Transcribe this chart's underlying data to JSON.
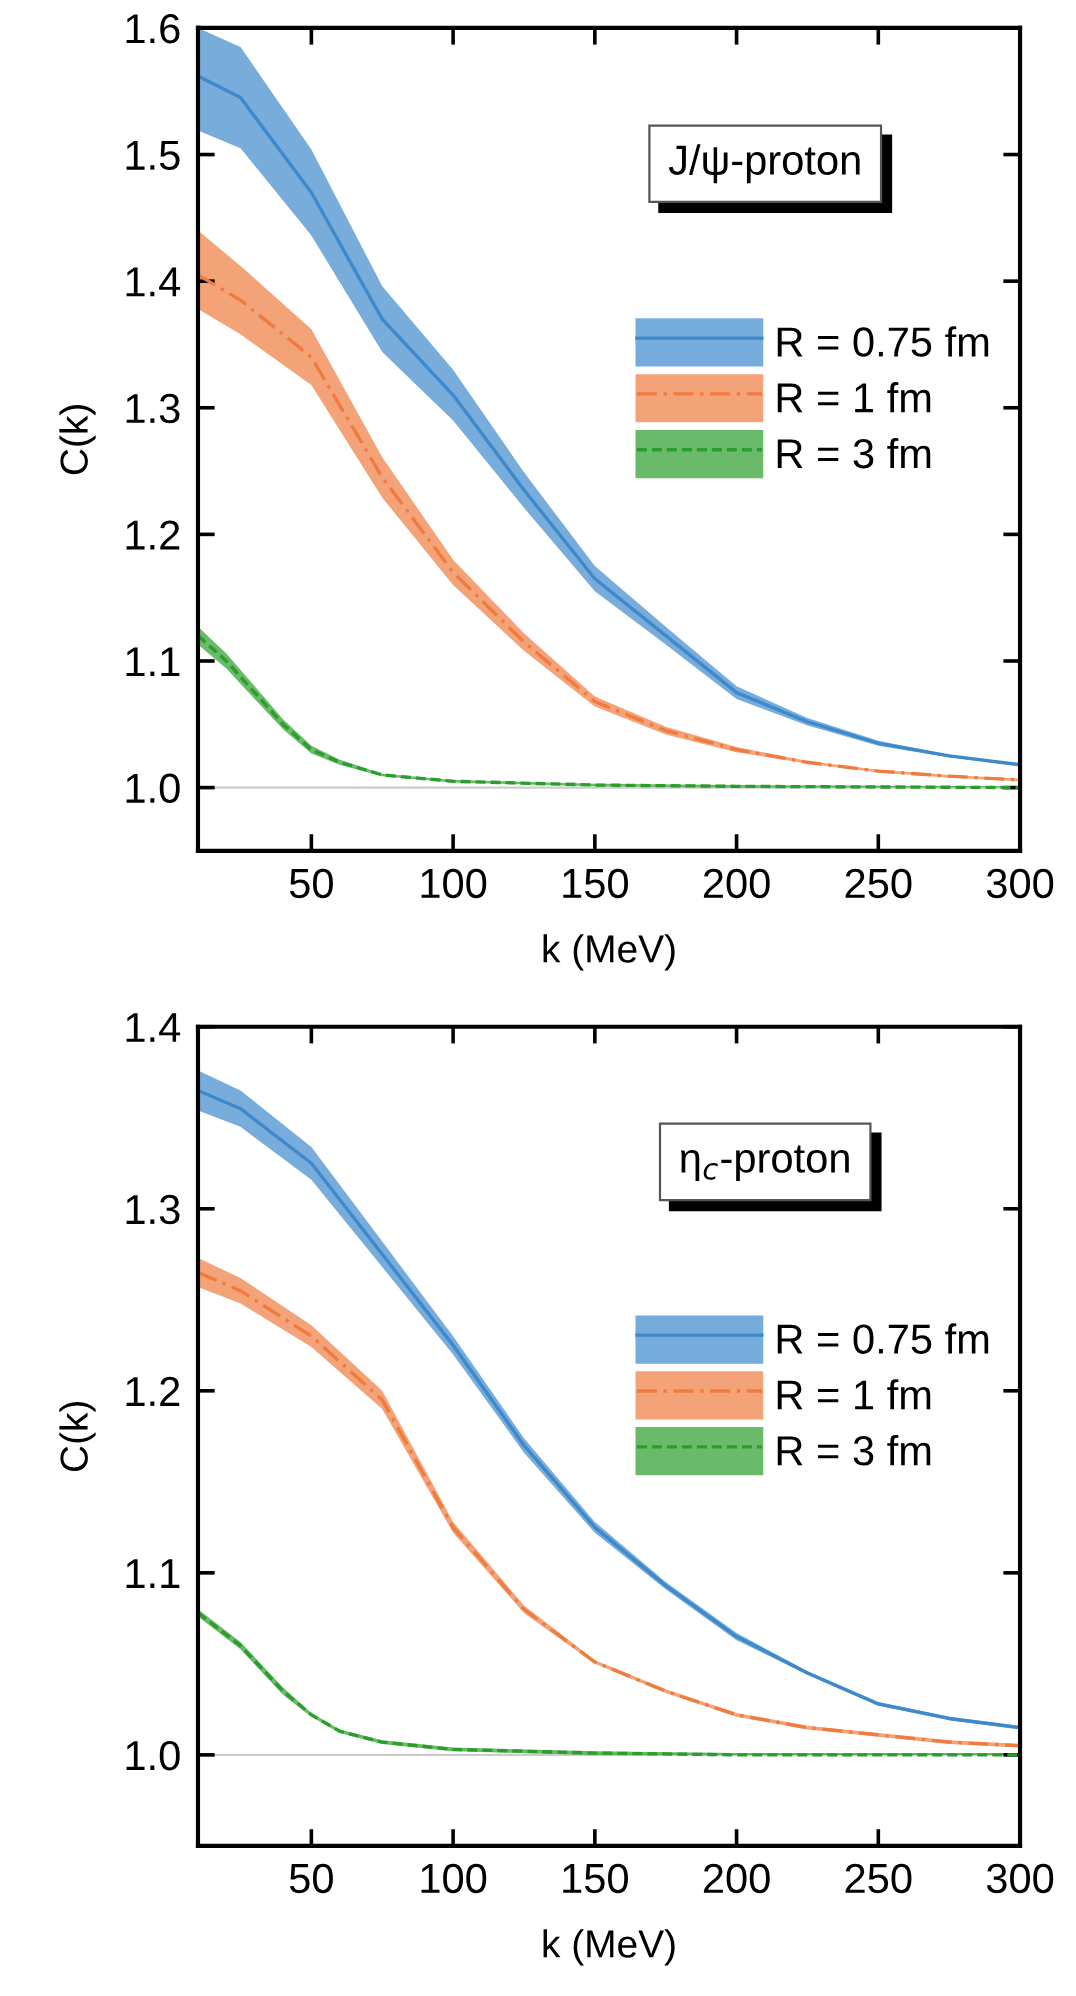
{
  "chart_data": [
    {
      "type": "line",
      "xlabel": "k (MeV)",
      "ylabel": "C(k)",
      "annotations": [
        "J/ψ-proton"
      ],
      "legend": "right",
      "grid": false,
      "xlim": [
        10,
        300
      ],
      "ylim": [
        0.95,
        1.6
      ],
      "xticks": [
        50,
        100,
        150,
        200,
        250,
        300
      ],
      "yticks": [
        {
          "value": 1.0,
          "label": "1.0"
        },
        1.1,
        1.2,
        1.3,
        1.4,
        1.5,
        1.6
      ],
      "ref_lines": [
        {
          "axis": "y",
          "value": 1.0,
          "color": "#cccccc"
        }
      ],
      "series": [
        {
          "name": "R = 0.75 fm",
          "color": "#3d89cc",
          "line_style": "solid",
          "x": [
            10,
            25,
            50,
            75,
            100,
            125,
            150,
            175,
            200,
            225,
            250,
            275,
            300
          ],
          "values": [
            1.562,
            1.545,
            1.47,
            1.37,
            1.31,
            1.235,
            1.165,
            1.12,
            1.075,
            1.052,
            1.035,
            1.025,
            1.018
          ],
          "lower": [
            1.519,
            1.505,
            1.436,
            1.344,
            1.29,
            1.221,
            1.155,
            1.113,
            1.07,
            1.049,
            1.033,
            1.024,
            1.017
          ],
          "upper": [
            1.6,
            1.585,
            1.504,
            1.396,
            1.33,
            1.249,
            1.175,
            1.127,
            1.08,
            1.055,
            1.037,
            1.026,
            1.019
          ]
        },
        {
          "name": "R = 1 fm",
          "color": "#f07b3f",
          "line_style": "dashdot",
          "x": [
            10,
            25,
            50,
            75,
            100,
            125,
            150,
            175,
            200,
            225,
            250,
            275,
            300
          ],
          "values": [
            1.405,
            1.385,
            1.34,
            1.245,
            1.17,
            1.115,
            1.068,
            1.045,
            1.03,
            1.02,
            1.013,
            1.009,
            1.006
          ],
          "lower": [
            1.378,
            1.358,
            1.318,
            1.229,
            1.16,
            1.108,
            1.064,
            1.042,
            1.028,
            1.019,
            1.012,
            1.008,
            1.005
          ],
          "upper": [
            1.44,
            1.412,
            1.362,
            1.261,
            1.18,
            1.122,
            1.072,
            1.048,
            1.032,
            1.021,
            1.014,
            1.01,
            1.007
          ]
        },
        {
          "name": "R = 3 fm",
          "color": "#2a9d2a",
          "line_style": "dashed",
          "x": [
            10,
            20,
            30,
            40,
            50,
            60,
            75,
            100,
            150,
            200,
            300
          ],
          "values": [
            1.12,
            1.1,
            1.075,
            1.05,
            1.03,
            1.02,
            1.01,
            1.005,
            1.002,
            1.001,
            1.0
          ],
          "lower": [
            1.113,
            1.094,
            1.07,
            1.046,
            1.027,
            1.018,
            1.009,
            1.004,
            1.001,
            1.0,
            1.0
          ],
          "upper": [
            1.127,
            1.106,
            1.08,
            1.054,
            1.033,
            1.022,
            1.011,
            1.006,
            1.003,
            1.002,
            1.001
          ]
        }
      ]
    },
    {
      "type": "line",
      "xlabel": "k (MeV)",
      "ylabel": "C(k)",
      "annotations": [
        "η$_{c}$-proton"
      ],
      "legend": "right",
      "grid": false,
      "xlim": [
        10,
        300
      ],
      "ylim": [
        0.95,
        1.4
      ],
      "xticks": [
        50,
        100,
        150,
        200,
        250,
        300
      ],
      "yticks": [
        {
          "value": 1.0,
          "label": "1.0"
        },
        1.1,
        1.2,
        1.3,
        1.4
      ],
      "ref_lines": [
        {
          "axis": "y",
          "value": 1.0,
          "color": "#cccccc"
        }
      ],
      "series": [
        {
          "name": "R = 0.75 fm",
          "color": "#3d89cc",
          "line_style": "solid",
          "x": [
            10,
            25,
            50,
            75,
            100,
            125,
            150,
            175,
            200,
            225,
            250,
            275,
            300
          ],
          "values": [
            1.365,
            1.355,
            1.325,
            1.275,
            1.225,
            1.17,
            1.125,
            1.093,
            1.065,
            1.045,
            1.028,
            1.02,
            1.015
          ],
          "lower": [
            1.354,
            1.345,
            1.316,
            1.268,
            1.22,
            1.166,
            1.122,
            1.091,
            1.063,
            1.044,
            1.027,
            1.019,
            1.014
          ],
          "upper": [
            1.376,
            1.365,
            1.334,
            1.282,
            1.23,
            1.174,
            1.128,
            1.095,
            1.067,
            1.046,
            1.029,
            1.021,
            1.016
          ]
        },
        {
          "name": "R = 1 fm",
          "color": "#f07b3f",
          "line_style": "dashdot",
          "x": [
            10,
            25,
            50,
            75,
            100,
            125,
            150,
            175,
            200,
            225,
            250,
            275,
            300
          ],
          "values": [
            1.265,
            1.255,
            1.23,
            1.195,
            1.125,
            1.08,
            1.051,
            1.035,
            1.022,
            1.015,
            1.011,
            1.007,
            1.005
          ],
          "lower": [
            1.257,
            1.248,
            1.224,
            1.19,
            1.122,
            1.078,
            1.05,
            1.034,
            1.021,
            1.014,
            1.01,
            1.006,
            1.004
          ],
          "upper": [
            1.273,
            1.262,
            1.236,
            1.2,
            1.128,
            1.082,
            1.052,
            1.036,
            1.023,
            1.016,
            1.012,
            1.008,
            1.006
          ]
        },
        {
          "name": "R = 3 fm",
          "color": "#2a9d2a",
          "line_style": "dashed",
          "x": [
            10,
            25,
            40,
            50,
            60,
            75,
            100,
            150,
            200,
            300
          ],
          "values": [
            1.078,
            1.06,
            1.035,
            1.022,
            1.013,
            1.007,
            1.003,
            1.001,
            1.0,
            1.0
          ],
          "lower": [
            1.076,
            1.058,
            1.033,
            1.021,
            1.012,
            1.006,
            1.002,
            1.0,
            1.0,
            1.0
          ],
          "upper": [
            1.08,
            1.062,
            1.037,
            1.023,
            1.014,
            1.008,
            1.004,
            1.002,
            1.001,
            1.001
          ]
        }
      ]
    }
  ]
}
